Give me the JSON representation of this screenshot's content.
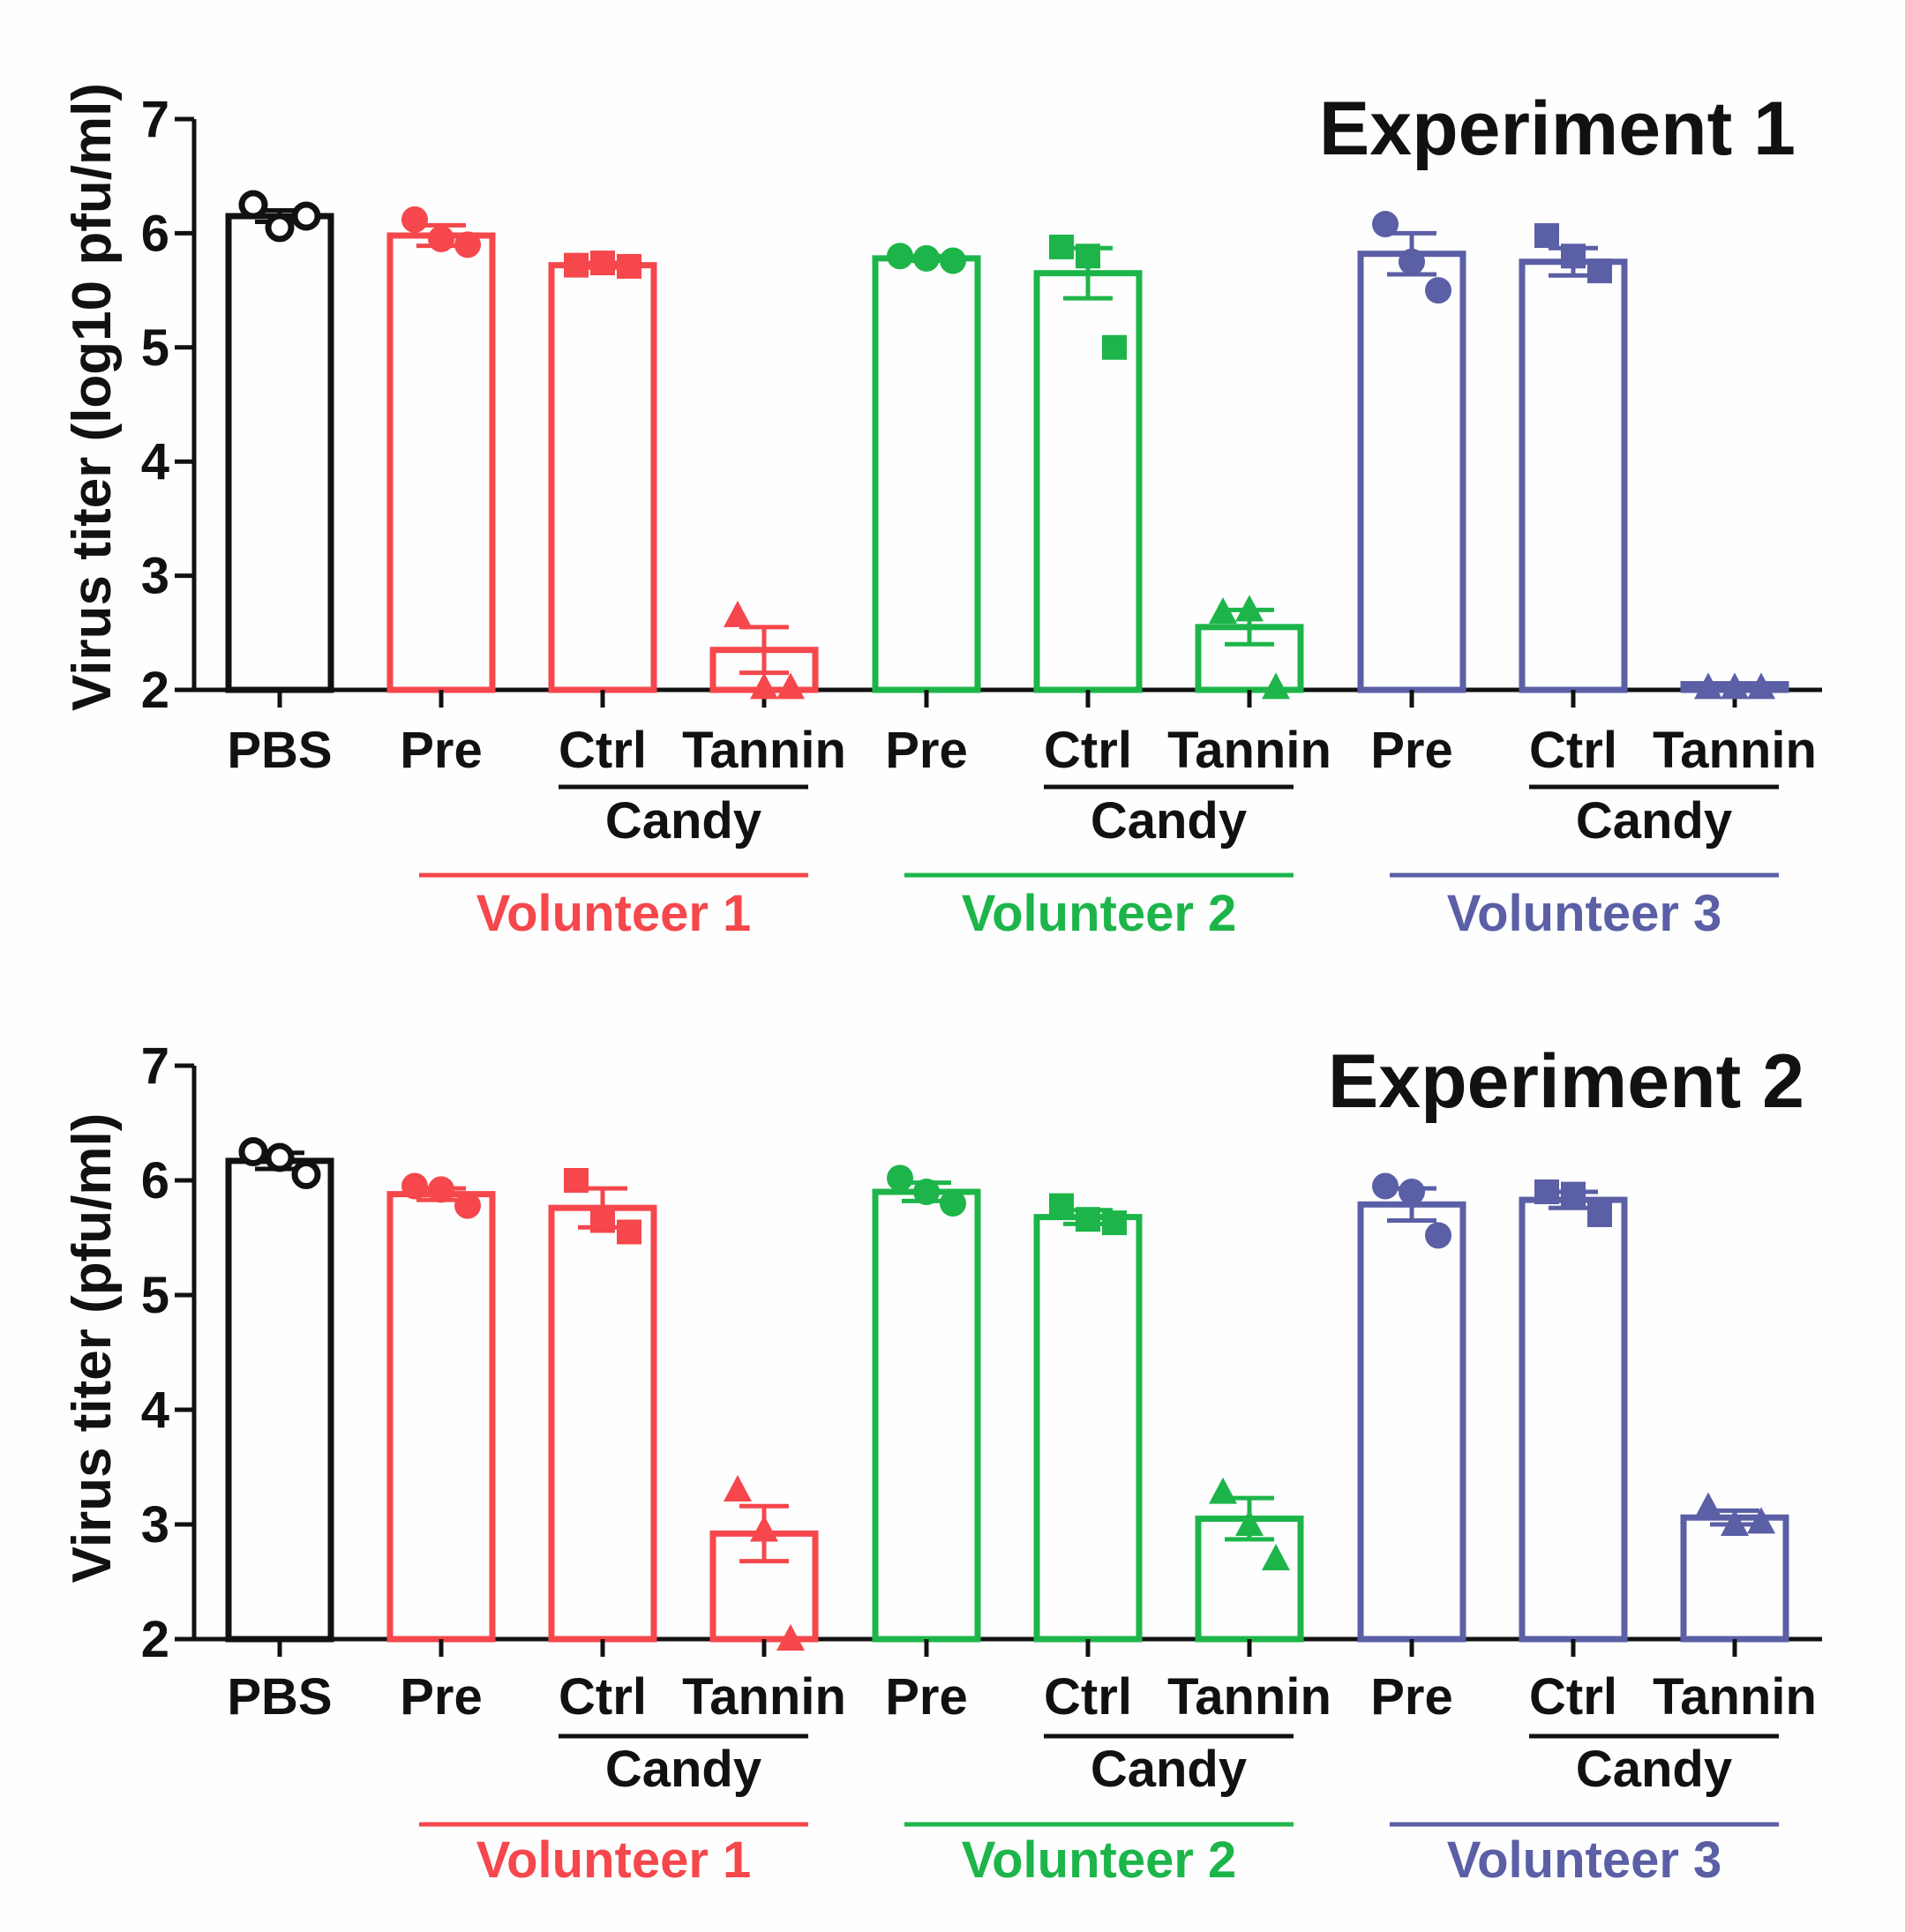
{
  "colors": {
    "PBS": "#111111",
    "Volunteer 1": "#f5474c",
    "Volunteer 2": "#1db54a",
    "Volunteer 3": "#5a5fa6",
    "bracket": "#111111"
  },
  "chart_data": [
    {
      "type": "bar",
      "title": "Experiment 1",
      "ylabel": "Virus titer (log10 pfu/ml)",
      "xlabel": "",
      "ylim": [
        2,
        7
      ],
      "yticks": [
        "2",
        "3",
        "4",
        "5",
        "6",
        "7"
      ],
      "categories": [
        "PBS",
        "Pre",
        "Ctrl",
        "Tannin",
        "Pre",
        "Ctrl",
        "Tannin",
        "Pre",
        "Ctrl",
        "Tannin"
      ],
      "groups": [
        "PBS",
        "Volunteer 1",
        "Volunteer 1",
        "Volunteer 1",
        "Volunteer 2",
        "Volunteer 2",
        "Volunteer 2",
        "Volunteer 3",
        "Volunteer 3",
        "Volunteer 3"
      ],
      "markers": [
        "open-circle",
        "circle",
        "square",
        "triangle",
        "circle",
        "square",
        "triangle",
        "circle",
        "square",
        "triangle"
      ],
      "means": [
        6.15,
        5.98,
        5.72,
        2.35,
        5.78,
        5.65,
        2.55,
        5.82,
        5.75,
        2.05
      ],
      "sem": [
        0.05,
        0.09,
        0.02,
        0.2,
        0.02,
        0.22,
        0.15,
        0.18,
        0.12,
        0.0
      ],
      "points": [
        [
          6.25,
          6.05,
          6.15
        ],
        [
          6.12,
          5.95,
          5.9
        ],
        [
          5.72,
          5.74,
          5.71
        ],
        [
          2.65,
          2.02,
          2.02
        ],
        [
          5.8,
          5.78,
          5.76
        ],
        [
          5.88,
          5.8,
          5.0
        ],
        [
          2.68,
          2.7,
          2.02
        ],
        [
          6.08,
          5.75,
          5.5
        ],
        [
          5.98,
          5.8,
          5.67
        ],
        [
          2.02,
          2.02,
          2.02
        ]
      ],
      "candy_labels": [
        "Candy",
        "Candy",
        "Candy"
      ],
      "volunteer_labels": [
        "Volunteer 1",
        "Volunteer 2",
        "Volunteer 3"
      ]
    },
    {
      "type": "bar",
      "title": "Experiment 2",
      "ylabel": "Virus titer (pfu/ml)",
      "xlabel": "",
      "ylim": [
        2,
        7
      ],
      "yticks": [
        "2",
        "3",
        "4",
        "5",
        "6",
        "7"
      ],
      "categories": [
        "PBS",
        "Pre",
        "Ctrl",
        "Tannin",
        "Pre",
        "Ctrl",
        "Tannin",
        "Pre",
        "Ctrl",
        "Tannin"
      ],
      "groups": [
        "PBS",
        "Volunteer 1",
        "Volunteer 1",
        "Volunteer 1",
        "Volunteer 2",
        "Volunteer 2",
        "Volunteer 2",
        "Volunteer 3",
        "Volunteer 3",
        "Volunteer 3"
      ],
      "markers": [
        "open-circle",
        "circle",
        "square",
        "triangle",
        "circle",
        "square",
        "triangle",
        "circle",
        "square",
        "triangle"
      ],
      "means": [
        6.17,
        5.88,
        5.76,
        2.92,
        5.9,
        5.68,
        3.05,
        5.79,
        5.83,
        3.06
      ],
      "sem": [
        0.07,
        0.05,
        0.17,
        0.24,
        0.08,
        0.06,
        0.18,
        0.14,
        0.07,
        0.06
      ],
      "points": [
        [
          6.25,
          6.2,
          6.05
        ],
        [
          5.95,
          5.92,
          5.78
        ],
        [
          6.0,
          5.65,
          5.55
        ],
        [
          3.3,
          2.95,
          2.0
        ],
        [
          6.02,
          5.9,
          5.8
        ],
        [
          5.78,
          5.66,
          5.63
        ],
        [
          3.28,
          3.0,
          2.7
        ],
        [
          5.95,
          5.9,
          5.52
        ],
        [
          5.9,
          5.88,
          5.7
        ],
        [
          3.15,
          3.0,
          3.02
        ]
      ],
      "candy_labels": [
        "Candy",
        "Candy",
        "Candy"
      ],
      "volunteer_labels": [
        "Volunteer 1",
        "Volunteer 2",
        "Volunteer 3"
      ]
    }
  ]
}
